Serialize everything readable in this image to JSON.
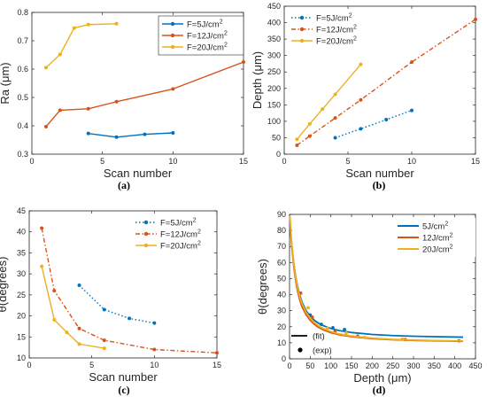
{
  "chart_data": [
    {
      "panel_id": "a",
      "type": "line",
      "caption": "(a)",
      "xlabel": "Scan number",
      "ylabel": "Ra (μm)",
      "xlim": [
        0,
        15
      ],
      "ylim": [
        0.3,
        0.8
      ],
      "xticks": [
        "0",
        "5",
        "10",
        "15"
      ],
      "yticks": [
        "0.3",
        "0.4",
        "0.5",
        "0.6",
        "0.7",
        "0.8"
      ],
      "grid": false,
      "legend": "top-right",
      "series": [
        {
          "name": "F=5J/cm",
          "sup": "2",
          "color": "#0072BD",
          "dash": "solid",
          "x": [
            4,
            6,
            8,
            10
          ],
          "y": [
            0.373,
            0.36,
            0.37,
            0.375
          ]
        },
        {
          "name": "F=12J/cm",
          "sup": "2",
          "color": "#D95319",
          "dash": "solid",
          "x": [
            1,
            2,
            4,
            6,
            10,
            15
          ],
          "y": [
            0.397,
            0.455,
            0.46,
            0.485,
            0.53,
            0.625
          ]
        },
        {
          "name": "F=20J/cm",
          "sup": "2",
          "color": "#EDB120",
          "dash": "solid",
          "x": [
            1,
            2,
            3,
            4,
            6
          ],
          "y": [
            0.605,
            0.652,
            0.745,
            0.757,
            0.76
          ]
        }
      ]
    },
    {
      "panel_id": "b",
      "type": "line",
      "caption": "(b)",
      "xlabel": "Scan number",
      "ylabel": "Depth (μm)",
      "xlim": [
        0,
        15
      ],
      "ylim": [
        0,
        450
      ],
      "xticks": [
        "0",
        "5",
        "10",
        "15"
      ],
      "yticks": [
        "0",
        "50",
        "100",
        "150",
        "200",
        "250",
        "300",
        "350",
        "400",
        "450"
      ],
      "grid": false,
      "legend": "top-left",
      "series": [
        {
          "name": "F=5J/cm",
          "sup": "2",
          "color": "#0072BD",
          "dash": "dot",
          "x": [
            4,
            6,
            8,
            10
          ],
          "y": [
            50,
            77,
            105,
            133
          ]
        },
        {
          "name": "F=12J/cm",
          "sup": "2",
          "color": "#D95319",
          "dash": "dashdot",
          "x": [
            1,
            2,
            4,
            6,
            10,
            15
          ],
          "y": [
            27,
            55,
            110,
            165,
            280,
            410
          ]
        },
        {
          "name": "F=20J/cm",
          "sup": "2",
          "color": "#EDB120",
          "dash": "solid",
          "x": [
            1,
            2,
            3,
            4,
            6
          ],
          "y": [
            45,
            92,
            137,
            182,
            273
          ]
        }
      ]
    },
    {
      "panel_id": "c",
      "type": "line",
      "caption": "(c)",
      "xlabel": "Scan number",
      "ylabel": "θ(degrees)",
      "xlim": [
        0,
        15
      ],
      "ylim": [
        10,
        45
      ],
      "xticks": [
        "0",
        "5",
        "10",
        "15"
      ],
      "yticks": [
        "10",
        "15",
        "20",
        "25",
        "30",
        "35",
        "40",
        "45"
      ],
      "grid": false,
      "legend": "top-right",
      "series": [
        {
          "name": "F=5J/cm",
          "sup": "2",
          "color": "#0072BD",
          "dash": "dot",
          "x": [
            4,
            6,
            8,
            10
          ],
          "y": [
            27.3,
            21.5,
            19.4,
            18.3
          ]
        },
        {
          "name": "F=12J/cm",
          "sup": "2",
          "color": "#D95319",
          "dash": "dashdot",
          "x": [
            1,
            2,
            4,
            6,
            10,
            15
          ],
          "y": [
            40.9,
            26,
            17,
            14.2,
            12,
            11.2
          ]
        },
        {
          "name": "F=20J/cm",
          "sup": "2",
          "color": "#EDB120",
          "dash": "solid",
          "x": [
            1,
            2,
            3,
            4,
            6
          ],
          "y": [
            31.8,
            19.1,
            16.1,
            13.3,
            12.3
          ]
        }
      ]
    },
    {
      "panel_id": "d",
      "type": "line",
      "caption": "(d)",
      "xlabel": "Depth (μm)",
      "ylabel": "θ(degrees)",
      "xlim": [
        0,
        450
      ],
      "ylim": [
        0,
        90
      ],
      "xticks": [
        "0",
        "50",
        "100",
        "150",
        "200",
        "250",
        "300",
        "350",
        "400",
        "450"
      ],
      "yticks": [
        "0",
        "10",
        "20",
        "30",
        "40",
        "50",
        "60",
        "70",
        "80",
        "90"
      ],
      "grid": false,
      "legend": "top-right",
      "marker_legend": [
        {
          "symbol": "line",
          "label": "(fit)"
        },
        {
          "symbol": "dot",
          "label": "(exp)"
        }
      ],
      "series": [
        {
          "name": "5J/cm",
          "sup": "2",
          "color": "#0072BD",
          "fit_x": [
            1,
            5,
            10,
            15,
            20,
            25,
            30,
            40,
            50,
            60,
            70,
            80,
            100,
            120,
            150,
            200,
            250,
            300,
            350,
            420
          ],
          "fit_y": [
            85,
            72,
            60,
            51,
            44.5,
            39.5,
            35.5,
            30,
            26.5,
            24,
            22.2,
            20.8,
            18.9,
            17.6,
            16.4,
            15.2,
            14.5,
            14.1,
            13.8,
            13.5
          ],
          "exp_x": [
            50,
            77,
            105,
            133
          ],
          "exp_y": [
            27.3,
            21.5,
            19.4,
            18.3
          ]
        },
        {
          "name": "12J/cm",
          "sup": "2",
          "color": "#D95319",
          "fit_x": [
            1,
            5,
            10,
            15,
            20,
            25,
            30,
            40,
            50,
            60,
            70,
            80,
            100,
            120,
            150,
            200,
            250,
            300,
            350,
            420
          ],
          "fit_y": [
            87,
            71,
            58,
            48.5,
            41.5,
            36.5,
            32.5,
            27.5,
            24,
            21.5,
            19.6,
            18.3,
            16.3,
            15,
            13.8,
            12.6,
            11.9,
            11.5,
            11.2,
            10.9
          ],
          "exp_x": [
            27,
            55,
            110,
            165,
            280,
            410
          ],
          "exp_y": [
            40.9,
            26,
            17,
            14.2,
            12,
            11.2
          ]
        },
        {
          "name": "20J/cm",
          "sup": "2",
          "color": "#EDB120",
          "fit_x": [
            1,
            5,
            10,
            15,
            20,
            25,
            30,
            40,
            50,
            60,
            70,
            80,
            100,
            120,
            150,
            200,
            250,
            300,
            350,
            420
          ],
          "fit_y": [
            89,
            73,
            60,
            50.5,
            43.5,
            38.5,
            34.5,
            29,
            25.3,
            22.6,
            20.6,
            19.1,
            17,
            15.5,
            14.2,
            12.9,
            12.1,
            11.7,
            11.4,
            11.1
          ],
          "exp_x": [
            45,
            92,
            137,
            182,
            273
          ],
          "exp_y": [
            31.8,
            19.1,
            16.1,
            13.3,
            12.3
          ]
        }
      ]
    }
  ]
}
